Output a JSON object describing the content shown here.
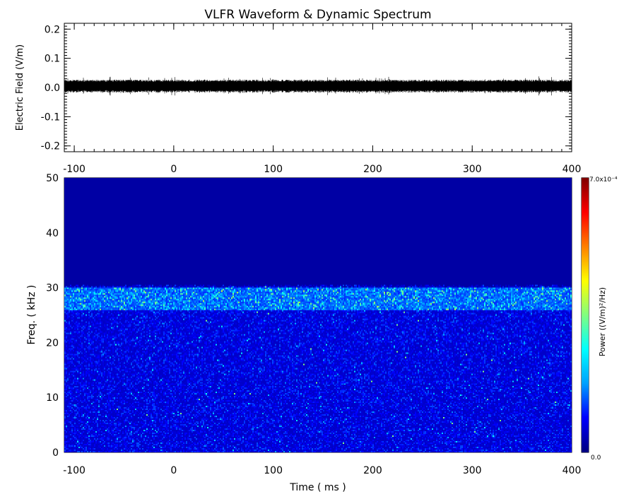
{
  "title": "VLFR Waveform & Dynamic Spectrum",
  "chart_data": [
    {
      "type": "line",
      "panel": "waveform",
      "xlim": [
        -110,
        400
      ],
      "ylim": [
        -0.22,
        0.22
      ],
      "x_ticks": [
        -100,
        0,
        100,
        200,
        300,
        400
      ],
      "y_ticks": [
        -0.2,
        -0.1,
        0.0,
        0.1,
        0.2
      ],
      "y_tick_labels": [
        "-0.2",
        "-0.1",
        "0.0",
        "0.1",
        "0.2"
      ],
      "ylabel": "Electric Field  (V/m)",
      "series": [
        {
          "center": 0.005,
          "amplitude": 0.02,
          "peak": 0.03,
          "color": "#000000"
        }
      ]
    },
    {
      "type": "heatmap",
      "panel": "dynamic-spectrum",
      "xlim": [
        -110,
        400
      ],
      "ylim": [
        0,
        50
      ],
      "x_ticks": [
        -100,
        0,
        100,
        200,
        300,
        400
      ],
      "y_ticks": [
        0,
        10,
        20,
        30,
        40,
        50
      ],
      "xlabel": "Time ( ms )",
      "ylabel": "Freq. ( kHz )",
      "signal_band_khz": [
        0,
        30
      ],
      "enhanced_band_khz": [
        26,
        30
      ],
      "colorbar": {
        "label": "Power  ((V/m)²/Hz)",
        "min_label": "0.0",
        "max_label": "7.0x10⁻⁴",
        "colormap": "rainbow",
        "colors": [
          "#000080",
          "#0000ff",
          "#00a0ff",
          "#00ffff",
          "#80ff80",
          "#ffff00",
          "#ff8000",
          "#ff0000",
          "#800000"
        ]
      }
    }
  ]
}
